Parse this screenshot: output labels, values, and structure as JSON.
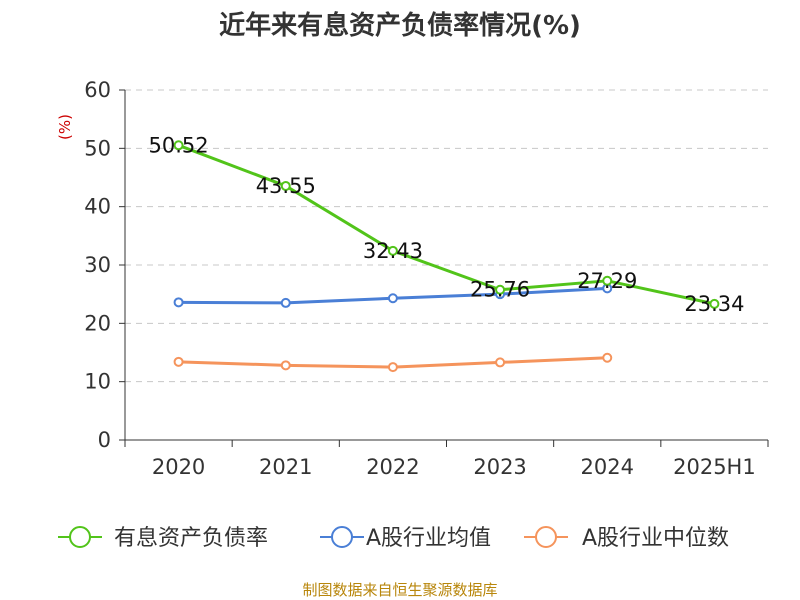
{
  "chart_data": {
    "type": "line",
    "title": "近年来有息资产负债率情况(%)",
    "ylabel": "(%)",
    "xlabel": "",
    "categories": [
      "2020",
      "2021",
      "2022",
      "2023",
      "2024",
      "2025H1"
    ],
    "ylim": [
      0,
      60
    ],
    "yticks": [
      0,
      10,
      20,
      30,
      40,
      50,
      60
    ],
    "grid": true,
    "legend_position": "bottom",
    "series": [
      {
        "name": "有息资产负债率",
        "color": "#52c41a",
        "values": [
          50.52,
          43.55,
          32.43,
          25.76,
          27.29,
          23.34
        ],
        "labels": [
          "50.52",
          "43.55",
          "32.43",
          "25.76",
          "27.29",
          "23.34"
        ]
      },
      {
        "name": "A股行业均值",
        "color": "#4a7fd6",
        "values": [
          23.6,
          23.5,
          24.3,
          25.0,
          26.0,
          null
        ]
      },
      {
        "name": "A股行业中位数",
        "color": "#f5945c",
        "values": [
          13.4,
          12.8,
          12.5,
          13.3,
          14.1,
          null
        ]
      }
    ]
  },
  "source_text": "制图数据来自恒生聚源数据库"
}
